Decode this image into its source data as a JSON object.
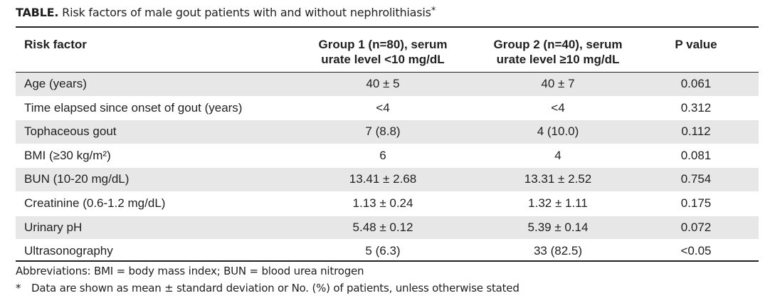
{
  "caption": {
    "label": "TABLE.",
    "text": "Risk factors of male gout patients with and without nephrolithiasis",
    "marker": "*"
  },
  "table": {
    "headers": {
      "risk": "Risk factor",
      "group1_line1": "Group 1 (n=80), serum",
      "group1_line2": "urate level <10 mg/dL",
      "group2_line1": "Group 2 (n=40), serum",
      "group2_line2": "urate level ≥10 mg/dL",
      "pvalue": "P value"
    },
    "rows": [
      {
        "risk": "Age (years)",
        "g1": "40 ± 5",
        "g2": "40 ± 7",
        "p": "0.061"
      },
      {
        "risk": "Time elapsed since onset of gout (years)",
        "g1": "<4",
        "g2": "<4",
        "p": "0.312"
      },
      {
        "risk": "Tophaceous gout",
        "g1": "7 (8.8)",
        "g2": "4 (10.0)",
        "p": "0.112"
      },
      {
        "risk": "BMI (≥30 kg/m²)",
        "g1": "6",
        "g2": "4",
        "p": "0.081"
      },
      {
        "risk": "BUN (10-20 mg/dL)",
        "g1": "13.41 ± 2.68",
        "g2": "13.31 ± 2.52",
        "p": "0.754"
      },
      {
        "risk": "Creatinine (0.6-1.2 mg/dL)",
        "g1": "1.13 ± 0.24",
        "g2": "1.32 ± 1.11",
        "p": "0.175"
      },
      {
        "risk": "Urinary pH",
        "g1": "5.48 ± 0.12",
        "g2": "5.39 ± 0.14",
        "p": "0.072"
      },
      {
        "risk": "Ultrasonography",
        "g1": "5 (6.3)",
        "g2": "33 (82.5)",
        "p": "<0.05"
      }
    ]
  },
  "footnotes": {
    "abbreviations": "Abbreviations: BMI = body mass index; BUN = blood urea nitrogen",
    "marker": "*",
    "data_note": "Data are shown as mean ± standard deviation or No. (%) of patients, unless otherwise stated"
  },
  "colors": {
    "row_shade": "#e7e7e7",
    "rule": "#222222",
    "text": "#1f1f1f"
  }
}
